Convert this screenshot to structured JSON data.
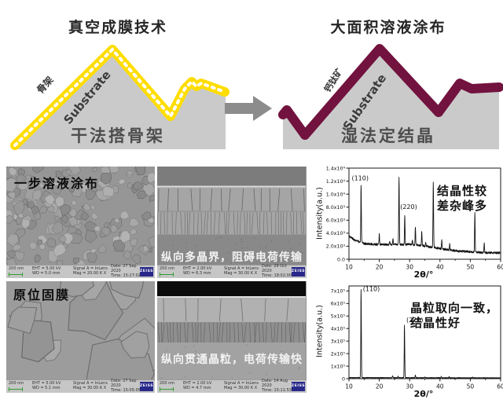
{
  "colors": {
    "skeleton_yellow": "#FFDD00",
    "perovskite_maroon": "#72123E",
    "substrate_gray": "#CACACA",
    "arrow_gray": "#8C8C8C",
    "zeiss_blue": "#28288A",
    "scalebar_green": "#2F9E2F",
    "trace_black": "#141414"
  },
  "top": {
    "left": {
      "title": "真空成膜技术",
      "coating_label": "骨架",
      "substrate_label": "Substrate",
      "caption": "干法搭骨架"
    },
    "right": {
      "title": "大面积溶液涂布",
      "coating_label": "钙钛矿",
      "substrate_label": "Substrate",
      "caption": "湿法定结晶"
    }
  },
  "sem": {
    "panels": [
      {
        "label": "一步溶液涂布",
        "meta": {
          "scale": "200 nm",
          "eht": "EHT = 5.00 kV",
          "wd": "WD = 5.0 mm",
          "signal": "Signal A = InLens",
          "mag": "Mag = 20.00 K X",
          "date": "Date: 27 Sep 2020",
          "time": "Time: 15:27:02",
          "logo": "ZEISS"
        }
      },
      {
        "caption": "纵向多晶界，阻碍电荷传输",
        "meta": {
          "scale": "200 nm",
          "eht": "EHT = 2.00 kV",
          "wd": "WD = 6.3 mm",
          "signal": "Signal A = InLens",
          "mag": "Mag = 30.00 K X",
          "date": "Date: 29 Oct 2020",
          "time": "Time: 18:02:00",
          "logo": "ZEISS"
        }
      },
      {
        "label": "原位固膜",
        "meta": {
          "scale": "200 nm",
          "eht": "EHT = 5.00 kV",
          "wd": "WD = 5.1 mm",
          "signal": "Signal A = InLens",
          "mag": "Mag = 30.00 K X",
          "date": "Date: 27 Sep 2020",
          "time": "Time: 15:05:05",
          "logo": "ZEISS"
        }
      },
      {
        "caption": "纵向贯通晶粒，电荷传输快",
        "meta": {
          "scale": "200 nm",
          "eht": "EHT = 2.00 kV",
          "wd": "WD = 4.7 mm",
          "signal": "Signal A = InLens",
          "mag": "Mag = 30.00 K X",
          "date": "Date: 14 Aug 2020",
          "time": "Time: 15:11:53",
          "logo": "ZEISS"
        }
      }
    ]
  },
  "chart_data": [
    {
      "type": "line",
      "title": "",
      "xlabel": "2θ/°",
      "ylabel": "Intensity(a.u.)",
      "xlim": [
        10,
        60
      ],
      "xticks": [
        10,
        20,
        30,
        40,
        50,
        60
      ],
      "ylim": [
        0,
        14000
      ],
      "ytick_values": [
        0,
        2000,
        4000,
        6000,
        8000,
        10000,
        12000,
        14000
      ],
      "ytick_labels": [
        "0.0",
        "2.0x10³",
        "4.0x10³",
        "6.0x10³",
        "8.0x10³",
        "1.0x10⁴",
        "1.2x10⁴",
        "1.4x10⁴"
      ],
      "grid": false,
      "baseline": [
        [
          10,
          3600
        ],
        [
          12,
          2900
        ],
        [
          15,
          2400
        ],
        [
          20,
          2250
        ],
        [
          25,
          2250
        ],
        [
          30,
          2300
        ],
        [
          34,
          2100
        ],
        [
          38,
          1800
        ],
        [
          42,
          1500
        ],
        [
          46,
          1250
        ],
        [
          50,
          1150
        ],
        [
          55,
          1000
        ],
        [
          60,
          950
        ]
      ],
      "noise": 170,
      "peaks": [
        {
          "x": 14.0,
          "y": 11500,
          "label": "(110)",
          "lx": 10.9,
          "ly": 12100
        },
        {
          "x": 20.0,
          "y": 3800
        },
        {
          "x": 23.5,
          "y": 2700
        },
        {
          "x": 24.5,
          "y": 3300
        },
        {
          "x": 26.5,
          "y": 12600
        },
        {
          "x": 28.4,
          "y": 6700,
          "label": "(220)",
          "lx": 26.9,
          "ly": 7700
        },
        {
          "x": 30.9,
          "y": 2900
        },
        {
          "x": 31.9,
          "y": 4900
        },
        {
          "x": 34.0,
          "y": 4300
        },
        {
          "x": 35.3,
          "y": 2600
        },
        {
          "x": 37.8,
          "y": 11700
        },
        {
          "x": 40.6,
          "y": 2900
        },
        {
          "x": 43.2,
          "y": 2400
        },
        {
          "x": 51.5,
          "y": 7200
        },
        {
          "x": 54.6,
          "y": 2500
        }
      ],
      "annotation": [
        "结晶性较",
        "差杂峰多"
      ]
    },
    {
      "type": "line",
      "title": "",
      "xlabel": "2θ/°",
      "ylabel": "Intensity(a.u.)",
      "xlim": [
        10,
        60
      ],
      "xticks": [
        10,
        20,
        30,
        40,
        50,
        60
      ],
      "ylim": [
        0,
        740000
      ],
      "ytick_values": [
        0,
        100000,
        200000,
        300000,
        400000,
        500000,
        600000,
        700000
      ],
      "ytick_labels": [
        "0",
        "1x10⁵",
        "2x10⁵",
        "3x10⁵",
        "4x10⁵",
        "5x10⁵",
        "6x10⁵",
        "7x10⁵"
      ],
      "grid": false,
      "baseline": [
        [
          10,
          8000
        ],
        [
          60,
          6000
        ]
      ],
      "noise": 2600,
      "peaks": [
        {
          "x": 14.0,
          "y": 710000,
          "label": "(110)",
          "lx": 14.6,
          "ly": 700000
        },
        {
          "x": 24.4,
          "y": 23000
        },
        {
          "x": 26.2,
          "y": 18000
        },
        {
          "x": 28.3,
          "y": 425000,
          "label": "(220)",
          "lx": 28.9,
          "ly": 452000
        },
        {
          "x": 31.9,
          "y": 27000
        },
        {
          "x": 35.0,
          "y": 14000
        },
        {
          "x": 40.4,
          "y": 17000
        },
        {
          "x": 43.0,
          "y": 14000
        },
        {
          "x": 50.8,
          "y": 11000
        }
      ],
      "annotation": [
        "晶粒取向一致，",
        "结晶性好"
      ]
    }
  ]
}
